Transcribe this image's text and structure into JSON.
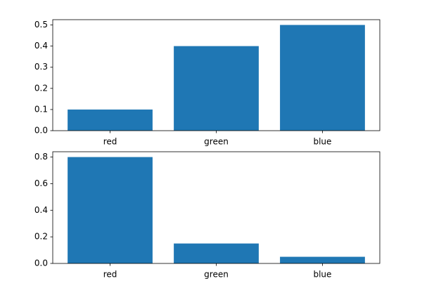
{
  "chart_data": [
    {
      "type": "bar",
      "categories": [
        "red",
        "green",
        "blue"
      ],
      "values": [
        0.1,
        0.4,
        0.5
      ],
      "color": "#1f77b4",
      "ylim": [
        0,
        0.525
      ],
      "yticks": [
        {
          "value": 0,
          "label": "0.0"
        },
        0.1,
        0.2,
        0.3,
        0.4,
        0.5
      ]
    },
    {
      "type": "bar",
      "categories": [
        "red",
        "green",
        "blue"
      ],
      "values": [
        0.8,
        0.15,
        0.05
      ],
      "color": "#1f77b4",
      "ylim": [
        0,
        0.84
      ],
      "yticks": [
        {
          "value": 0,
          "label": "0.0"
        },
        0.2,
        0.4,
        0.6,
        0.8
      ]
    }
  ]
}
